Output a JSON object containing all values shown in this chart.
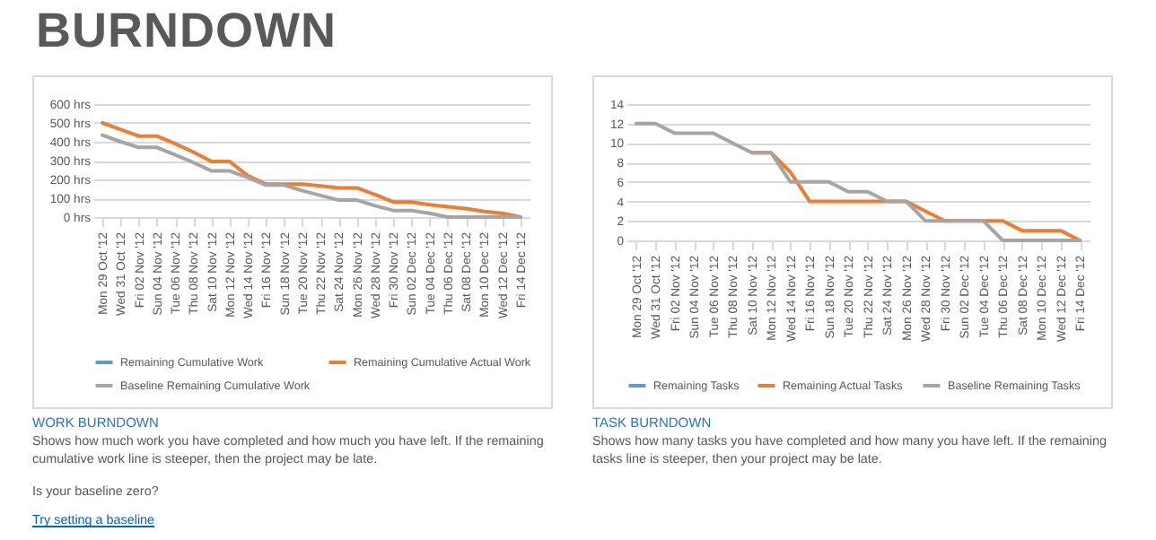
{
  "chart_data": [
    {
      "type": "line",
      "title": "WORK BURNDOWN",
      "annotations": [
        "BURNDOWN",
        "Shows how much work you have completed and how much you have left. If the remaining cumulative work line is steeper, then the project may be late.",
        "Is your baseline zero?",
        "Try setting a baseline"
      ],
      "categories": [
        "Mon 29 Oct '12",
        "Wed 31 Oct '12",
        "Fri 02 Nov '12",
        "Sun 04 Nov '12",
        "Tue 06 Nov '12",
        "Thu 08 Nov '12",
        "Sat 10 Nov '12",
        "Mon 12 Nov '12",
        "Wed 14 Nov '12",
        "Fri 16 Nov '12",
        "Sun 18 Nov '12",
        "Tue 20 Nov '12",
        "Thu 22 Nov '12",
        "Sat 24 Nov '12",
        "Mon 26 Nov '12",
        "Wed 28 Nov '12",
        "Fri 30 Nov '12",
        "Sun 02 Dec '12",
        "Tue 04 Dec '12",
        "Thu 06 Dec '12",
        "Sat 08 Dec '12",
        "Mon 10 Dec '12",
        "Wed 12 Dec '12",
        "Fri 14 Dec '12"
      ],
      "series": [
        {
          "name": "Remaining Cumulative Work",
          "color": "#5b9bd5",
          "values": [
            null,
            null,
            null,
            null,
            null,
            null,
            null,
            null,
            null,
            null,
            null,
            null,
            null,
            null,
            null,
            null,
            null,
            null,
            null,
            null,
            null,
            null,
            null,
            null
          ]
        },
        {
          "name": "Remaining Cumulative Actual Work",
          "color": "#ed7d31",
          "values": [
            500,
            465,
            430,
            430,
            390,
            345,
            295,
            295,
            220,
            175,
            175,
            175,
            165,
            155,
            155,
            120,
            80,
            80,
            65,
            55,
            45,
            30,
            20,
            0
          ]
        },
        {
          "name": "Baseline Remaining Cumulative Work",
          "color": "#a5a5a5",
          "values": [
            435,
            400,
            370,
            370,
            330,
            290,
            245,
            245,
            210,
            170,
            170,
            140,
            115,
            90,
            90,
            60,
            35,
            35,
            20,
            0,
            0,
            0,
            0,
            0
          ]
        }
      ],
      "ylim": [
        0,
        600
      ],
      "yticks": [
        {
          "value": 0,
          "label": "0 hrs"
        },
        {
          "value": 100,
          "label": "100 hrs"
        },
        {
          "value": 200,
          "label": "200 hrs"
        },
        {
          "value": 300,
          "label": "300 hrs"
        },
        {
          "value": 400,
          "label": "400 hrs"
        },
        {
          "value": 500,
          "label": "500 hrs"
        },
        {
          "value": 600,
          "label": "600 hrs"
        }
      ],
      "grid": "y",
      "legend": "bottom",
      "marker": "none",
      "line_style": "solid"
    },
    {
      "type": "line",
      "title": "TASK BURNDOWN",
      "annotations": [
        "Shows how many tasks you have completed and how many you have left. If the remaining tasks line is steeper, then your project may be late."
      ],
      "categories": [
        "Mon 29 Oct '12",
        "Wed 31 Oct '12",
        "Fri 02 Nov '12",
        "Sun 04 Nov '12",
        "Tue 06 Nov '12",
        "Thu 08 Nov '12",
        "Sat 10 Nov '12",
        "Mon 12 Nov '12",
        "Wed 14 Nov '12",
        "Fri 16 Nov '12",
        "Sun 18 Nov '12",
        "Tue 20 Nov '12",
        "Thu 22 Nov '12",
        "Sat 24 Nov '12",
        "Mon 26 Nov '12",
        "Wed 28 Nov '12",
        "Fri 30 Nov '12",
        "Sun 02 Dec '12",
        "Tue 04 Dec '12",
        "Thu 06 Dec '12",
        "Sat 08 Dec '12",
        "Mon 10 Dec '12",
        "Wed 12 Dec '12",
        "Fri 14 Dec '12"
      ],
      "series": [
        {
          "name": "Remaining Tasks",
          "color": "#5b9bd5",
          "values": [
            null,
            null,
            null,
            null,
            null,
            null,
            null,
            null,
            null,
            null,
            null,
            null,
            null,
            null,
            null,
            null,
            null,
            null,
            null,
            null,
            null,
            null,
            null,
            null
          ]
        },
        {
          "name": "Remaining Actual Tasks",
          "color": "#ed7d31",
          "values": [
            null,
            null,
            null,
            null,
            null,
            null,
            9,
            9,
            7,
            4,
            4,
            4,
            4,
            4,
            4,
            3,
            2,
            2,
            2,
            2,
            1,
            1,
            1,
            0
          ]
        },
        {
          "name": "Baseline Remaining Tasks",
          "color": "#a5a5a5",
          "values": [
            12,
            12,
            11,
            11,
            11,
            10,
            9,
            9,
            6,
            6,
            6,
            5,
            5,
            4,
            4,
            2,
            2,
            2,
            2,
            0,
            0,
            0,
            0,
            0
          ]
        }
      ],
      "ylim": [
        0,
        14
      ],
      "yticks": [
        0,
        2,
        4,
        6,
        8,
        10,
        12,
        14
      ],
      "grid": "y",
      "legend": "bottom",
      "marker": "none",
      "line_style": "solid"
    }
  ]
}
